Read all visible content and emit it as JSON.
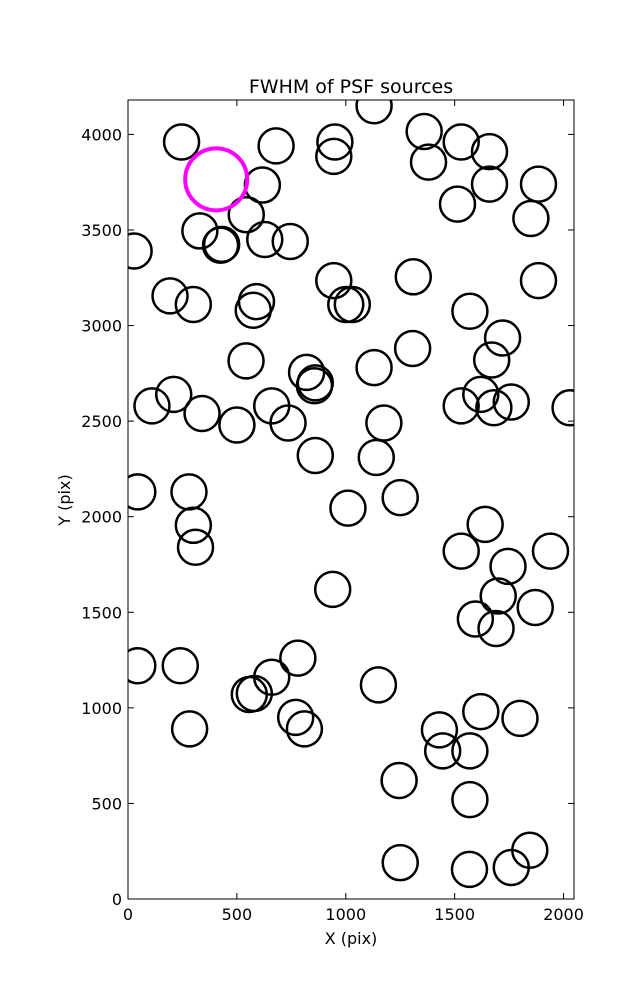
{
  "chart_data": {
    "type": "scatter",
    "title": "FWHM of PSF sources",
    "xlabel": "X (pix)",
    "ylabel": "Y (pix)",
    "xlim": [
      0,
      2048
    ],
    "ylim": [
      0,
      4180
    ],
    "xticks": [
      0,
      500,
      1000,
      1500,
      2000
    ],
    "yticks": [
      0,
      500,
      1000,
      1500,
      2000,
      2500,
      3000,
      3500,
      4000
    ],
    "grid": false,
    "marker": "open-circle",
    "colors": {
      "source": "#000000",
      "highlight": "#ff00ff"
    },
    "series": [
      {
        "role": "source",
        "x": [
          246,
          680,
          950,
          1130,
          1360,
          1530,
          1660,
          945,
          1380,
          617,
          1660,
          1885,
          1513,
          543,
          1850,
          330,
          430,
          425,
          628,
          745,
          28,
          1310,
          945,
          1885,
          193,
          300,
          590,
          575,
          1570,
          1000,
          1030,
          1720,
          1670,
          542,
          1130,
          1307,
          820,
          860,
          856,
          210,
          110,
          1620,
          1760,
          1530,
          1680,
          2030,
          340,
          500,
          660,
          735,
          1175,
          860,
          1140,
          45,
          280,
          1010,
          1250,
          300,
          1640,
          310,
          1530,
          1745,
          1940,
          940,
          1700,
          1870,
          1595,
          1690,
          45,
          240,
          780,
          660,
          557,
          580,
          1150,
          1620,
          283,
          770,
          810,
          1800,
          1430,
          1445,
          1570,
          1245,
          1570,
          1250,
          1845,
          1760,
          1568
        ],
        "y": [
          3960,
          3940,
          3960,
          4150,
          4015,
          3960,
          3910,
          3885,
          3855,
          3735,
          3740,
          3740,
          3635,
          3580,
          3560,
          3495,
          3425,
          3420,
          3450,
          3440,
          3390,
          3255,
          3235,
          3235,
          3155,
          3110,
          3125,
          3080,
          3075,
          3110,
          3110,
          2935,
          2820,
          2815,
          2780,
          2880,
          2755,
          2700,
          2685,
          2640,
          2580,
          2640,
          2600,
          2580,
          2570,
          2570,
          2540,
          2480,
          2580,
          2490,
          2490,
          2320,
          2310,
          2130,
          2130,
          2045,
          2100,
          1955,
          1960,
          1840,
          1820,
          1740,
          1820,
          1620,
          1585,
          1525,
          1465,
          1415,
          1220,
          1220,
          1260,
          1160,
          1070,
          1075,
          1120,
          980,
          890,
          950,
          890,
          945,
          885,
          775,
          775,
          620,
          520,
          190,
          255,
          165,
          155
        ]
      },
      {
        "role": "highlight",
        "x": [
          405
        ],
        "y": [
          3765
        ]
      }
    ]
  }
}
